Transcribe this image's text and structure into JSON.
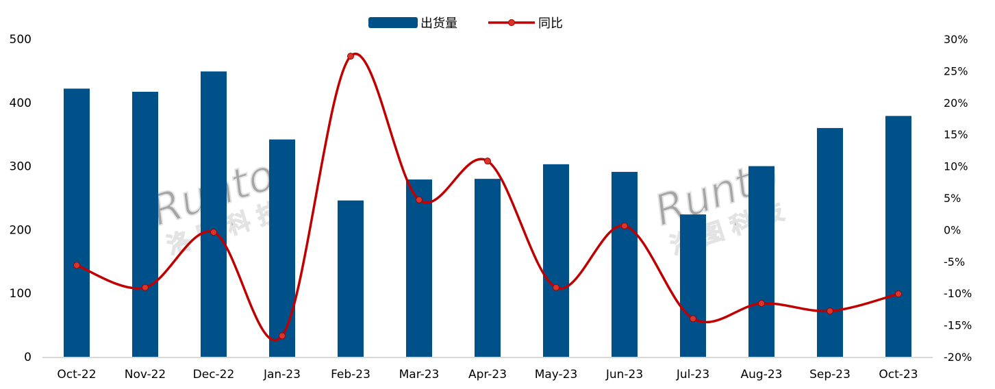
{
  "chart_data": {
    "type": "bar",
    "title": "",
    "categories": [
      "Oct-22",
      "Nov-22",
      "Dec-22",
      "Jan-23",
      "Feb-23",
      "Mar-23",
      "Apr-23",
      "May-23",
      "Jun-23",
      "Jul-23",
      "Aug-23",
      "Sep-23",
      "Oct-23"
    ],
    "series": [
      {
        "name": "出货量",
        "type": "bar",
        "axis": "left",
        "color": "#00518A",
        "values": [
          422,
          417,
          449,
          342,
          246,
          279,
          280,
          303,
          291,
          224,
          300,
          360,
          379
        ]
      },
      {
        "name": "同比",
        "type": "line",
        "axis": "right",
        "color": "#C00000",
        "smooth": true,
        "unit": "%",
        "values": [
          -5.6,
          -9.1,
          -0.4,
          -16.7,
          27.3,
          4.7,
          10.8,
          -9.1,
          0.6,
          -14.0,
          -11.6,
          -12.8,
          -10.1
        ]
      }
    ],
    "left_axis": {
      "ylim": [
        0,
        500
      ],
      "ticks": [
        0,
        100,
        200,
        300,
        400,
        500
      ]
    },
    "right_axis": {
      "ylim": [
        -20,
        30
      ],
      "ticks": [
        "-20%",
        "-15%",
        "-10%",
        "-5%",
        "0%",
        "5%",
        "10%",
        "15%",
        "20%",
        "25%",
        "30%"
      ]
    },
    "grid": false,
    "legend": "top-center",
    "watermark": [
      "Runto",
      "洛 图 科 技"
    ]
  }
}
